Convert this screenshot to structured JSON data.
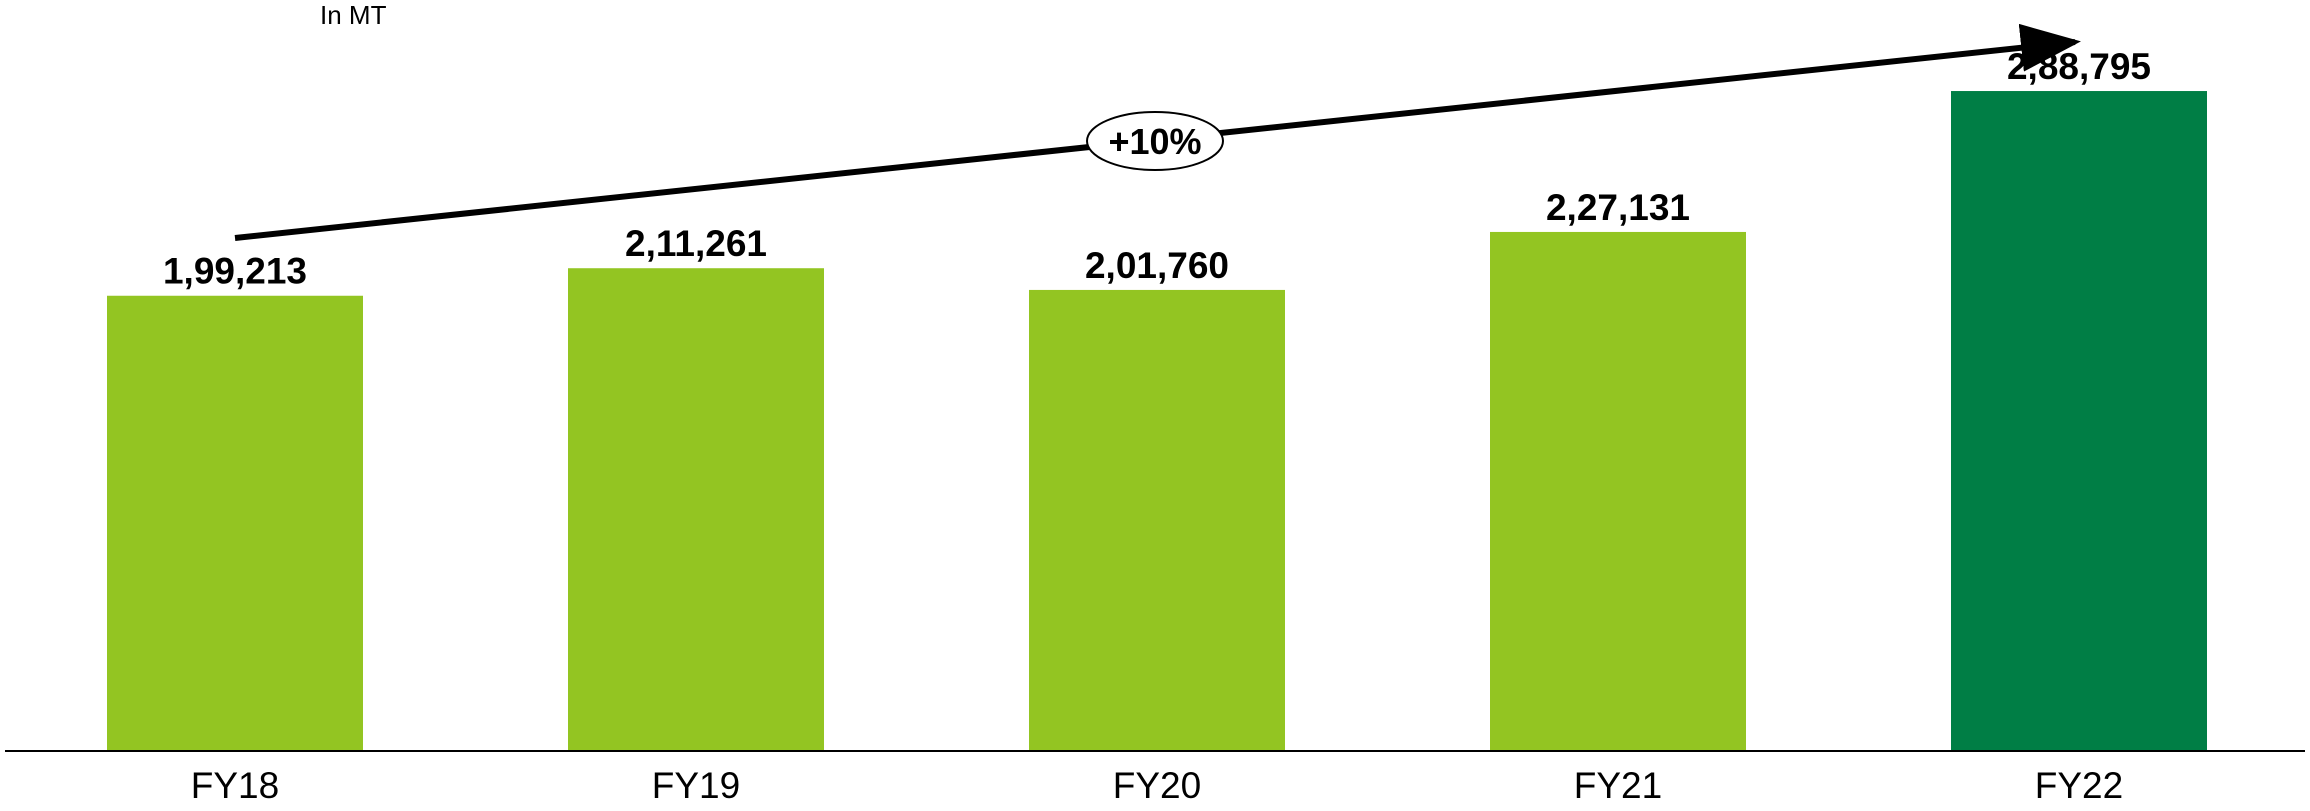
{
  "unit_label": "In MT",
  "cagr_label": "+10%",
  "colors": {
    "bar": "#93C522",
    "highlight": "#007E45",
    "axis": "#000000"
  },
  "chart_data": {
    "type": "bar",
    "categories": [
      "FY18",
      "FY19",
      "FY20",
      "FY21",
      "FY22"
    ],
    "values": [
      199213,
      211261,
      201760,
      227131,
      288795
    ],
    "value_labels": [
      "1,99,213",
      "2,11,261",
      "2,01,760",
      "2,27,131",
      "2,88,795"
    ],
    "highlight": "FY22",
    "title": "",
    "xlabel": "",
    "ylabel": "",
    "ylim": [
      0,
      305000
    ],
    "grid": false,
    "annotation": "+10%"
  }
}
